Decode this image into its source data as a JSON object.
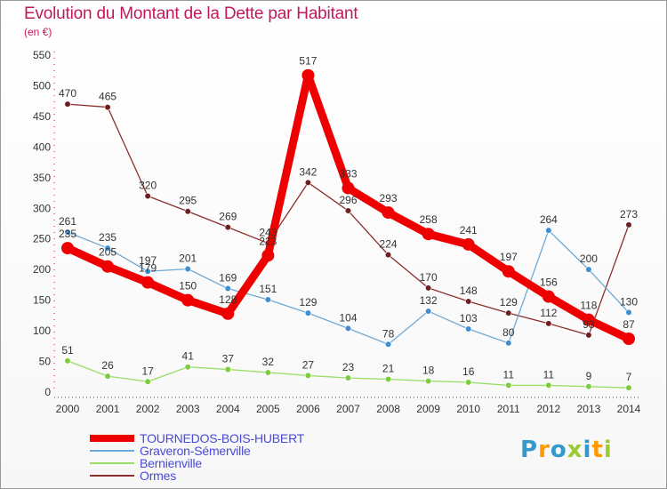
{
  "header": {
    "title": "Evolution du Montant de la Dette par Habitant",
    "unit": "(en €)"
  },
  "brand": {
    "text": "Proxiti"
  },
  "colors": {
    "title": "#c2185b",
    "legend_text": "#4a4ad8",
    "axis": "#ff0000",
    "label": "#333333"
  },
  "chart_data": {
    "type": "line",
    "title": "Evolution du Montant de la Dette par Habitant",
    "subtitle": "(en €)",
    "xlabel": "",
    "ylabel": "",
    "ylim": [
      0,
      550
    ],
    "yticks": [
      0,
      50,
      100,
      150,
      200,
      250,
      300,
      350,
      400,
      450,
      500,
      550
    ],
    "grid": false,
    "legend_position": "bottom-left",
    "categories": [
      "2000",
      "2001",
      "2002",
      "2003",
      "2004",
      "2005",
      "2006",
      "2007",
      "2008",
      "2009",
      "2010",
      "2011",
      "2012",
      "2013",
      "2014"
    ],
    "series": [
      {
        "name": "Ormes",
        "color": "#8b2e2e",
        "marker": "#6e1f1f",
        "values": [
          470,
          465,
          320,
          295,
          269,
          243,
          342,
          296,
          224,
          170,
          148,
          129,
          112,
          93,
          273
        ],
        "labels": [
          "470",
          "465",
          "320",
          "295",
          "269",
          "243",
          "342",
          "296",
          "224",
          "170",
          "148",
          "129",
          "112",
          "93",
          "273"
        ]
      },
      {
        "name": "Graveron-Sémerville",
        "color": "#6ea9d6",
        "marker": "#3f8fd0",
        "values": [
          261,
          235,
          197,
          201,
          169,
          151,
          129,
          104,
          78,
          132,
          103,
          80,
          264,
          200,
          130
        ],
        "labels": [
          "261",
          "235",
          "197",
          "201",
          "169",
          "151",
          "129",
          "104",
          "78",
          "132",
          "103",
          "80",
          "264",
          "200",
          "130"
        ]
      },
      {
        "name": "Bernienville",
        "color": "#99dd66",
        "marker": "#7ccc3c",
        "values": [
          51,
          26,
          17,
          41,
          37,
          32,
          27,
          23,
          21,
          18,
          16,
          11,
          11,
          9,
          7
        ],
        "labels": [
          "51",
          "26",
          "17",
          "41",
          "37",
          "32",
          "27",
          "23",
          "21",
          "18",
          "16",
          "11",
          "11",
          "9",
          "7"
        ]
      },
      {
        "name": "TOURNEDOS-BOIS-HUBERT",
        "color": "#ee0000",
        "marker": "#ee0000",
        "values": [
          235,
          205,
          179,
          150,
          128,
          223,
          517,
          333,
          293,
          258,
          241,
          197,
          156,
          118,
          87
        ],
        "labels": [
          "235",
          "205",
          "179",
          "150",
          "128",
          "223",
          "517",
          "333",
          "293",
          "258",
          "241",
          "197",
          "156",
          "118",
          "87"
        ]
      }
    ]
  },
  "legend": {
    "items": [
      {
        "label": "TOURNEDOS-BOIS-HUBERT",
        "color": "#ee0000",
        "thick": true
      },
      {
        "label": "Graveron-Sémerville",
        "color": "#6ea9d6",
        "thick": false
      },
      {
        "label": "Bernienville",
        "color": "#99dd66",
        "thick": false
      },
      {
        "label": "Ormes",
        "color": "#8b2e2e",
        "thick": false
      }
    ]
  }
}
